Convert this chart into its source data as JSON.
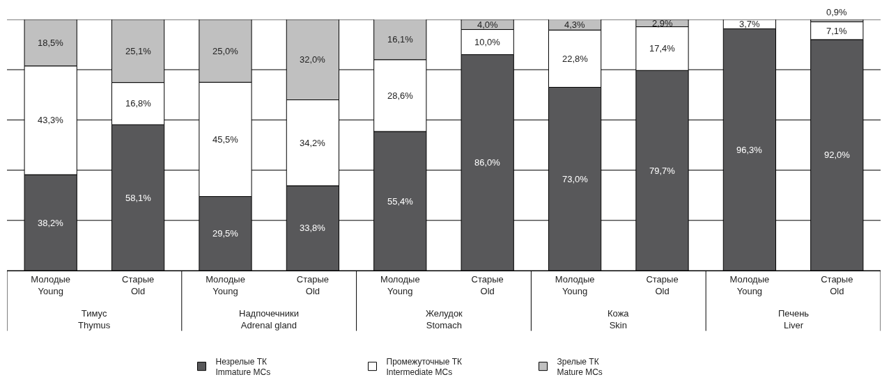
{
  "chart_data": {
    "type": "bar",
    "stacked": true,
    "categories": [
      "Молодые\nYoung",
      "Старые\nOld",
      "Молодые\nYoung",
      "Старые\nOld",
      "Молодые\nYoung",
      "Старые\nOld",
      "Молодые\nYoung",
      "Старые\nOld",
      "Молодые\nYoung",
      "Старые\nOld"
    ],
    "annotations": [
      "Тимус\nThymus",
      "Надпочечники\nAdrenal gland",
      "Желудок\nStomach",
      "Кожа\nSkin",
      "Печень\nLiver"
    ],
    "series": [
      {
        "name": "Незрелые ТК\nImmature MCs",
        "color": "#58585a",
        "values": [
          38.2,
          58.1,
          29.5,
          33.8,
          55.4,
          86.0,
          73.0,
          79.7,
          96.3,
          92.0
        ],
        "value_labels": [
          "38,2%",
          "58,1%",
          "29,5%",
          "33,8%",
          "55,4%",
          "86,0%",
          "73,0%",
          "79,7%",
          "96,3%",
          "92,0%"
        ]
      },
      {
        "name": "Промежуточные ТК\nIntermediate MCs",
        "color": "#ffffff",
        "values": [
          43.3,
          16.8,
          45.5,
          34.2,
          28.6,
          10.0,
          22.8,
          17.4,
          3.7,
          7.1
        ],
        "value_labels": [
          "43,3%",
          "16,8%",
          "45,5%",
          "34,2%",
          "28,6%",
          "10,0%",
          "22,8%",
          "17,4%",
          "3,7%",
          "7,1%"
        ]
      },
      {
        "name": "Зрелые ТК\nMature MCs",
        "color": "#c0c0c0",
        "values": [
          18.5,
          25.1,
          25.0,
          32.0,
          16.1,
          4.0,
          4.3,
          2.9,
          null,
          0.9
        ],
        "value_labels": [
          "18,5%",
          "25,1%",
          "25,0%",
          "32,0%",
          "16,1%",
          "4,0%",
          "4,3%",
          "2,9%",
          null,
          "0,9%"
        ]
      }
    ],
    "ylim": [
      0,
      100
    ],
    "yticks": [
      {
        "value": 0,
        "label": null
      },
      {
        "value": 20,
        "label": null
      },
      {
        "value": 40,
        "label": null
      },
      {
        "value": 60,
        "label": null
      },
      {
        "value": 80,
        "label": null
      },
      {
        "value": 100,
        "label": null
      }
    ],
    "tick_labels": "x",
    "grid": "y",
    "legend": "bottom"
  }
}
